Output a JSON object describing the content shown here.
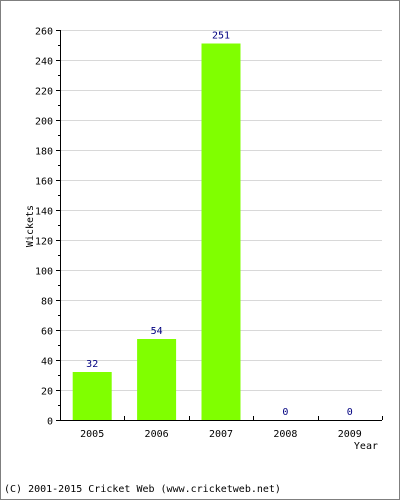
{
  "chart_data": {
    "type": "bar",
    "categories": [
      "2005",
      "2006",
      "2007",
      "2008",
      "2009"
    ],
    "values": [
      32,
      54,
      251,
      0,
      0
    ],
    "title": "",
    "xlabel": "Year",
    "ylabel": "Wickets",
    "ylim": [
      0,
      260
    ],
    "yticks": [
      0,
      20,
      40,
      60,
      80,
      100,
      120,
      140,
      160,
      180,
      200,
      220,
      240,
      260
    ],
    "grid": true,
    "legend": "none",
    "colors": {
      "bar": "#80ff00",
      "value_label": "#000080",
      "grid": "#d8d8d8",
      "axis": "#000000",
      "frame": "#7f7f7f"
    }
  },
  "footer": {
    "copyright": "(C) 2001-2015 Cricket Web (www.cricketweb.net)"
  }
}
